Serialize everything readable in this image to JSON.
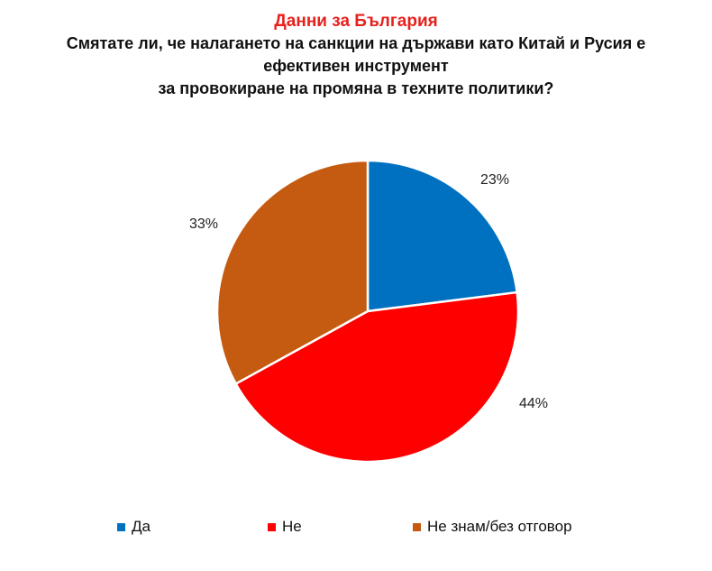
{
  "header": {
    "title": "Данни за България",
    "question_lines": [
      "Смятате ли, че налагането на санкции на държави като Китай и Русия е",
      "ефективен инструмент",
      "за провокиране на промяна в техните политики?"
    ]
  },
  "chart_data": {
    "type": "pie",
    "title": "Данни за България",
    "subtitle": "Смятате ли, че налагането на санкции на държави като Китай и Русия е ефективен инструмент за провокиране на промяна в техните политики?",
    "categories": [
      "Да",
      "Не",
      "Не знам/без отговор"
    ],
    "values": [
      23,
      44,
      33
    ],
    "labels": [
      "23%",
      "44%",
      "33%"
    ],
    "colors": [
      "#0070c0",
      "#ff0000",
      "#c55a11"
    ],
    "start_angle": "12 o'clock",
    "direction": "clockwise",
    "legend_position": "bottom"
  }
}
